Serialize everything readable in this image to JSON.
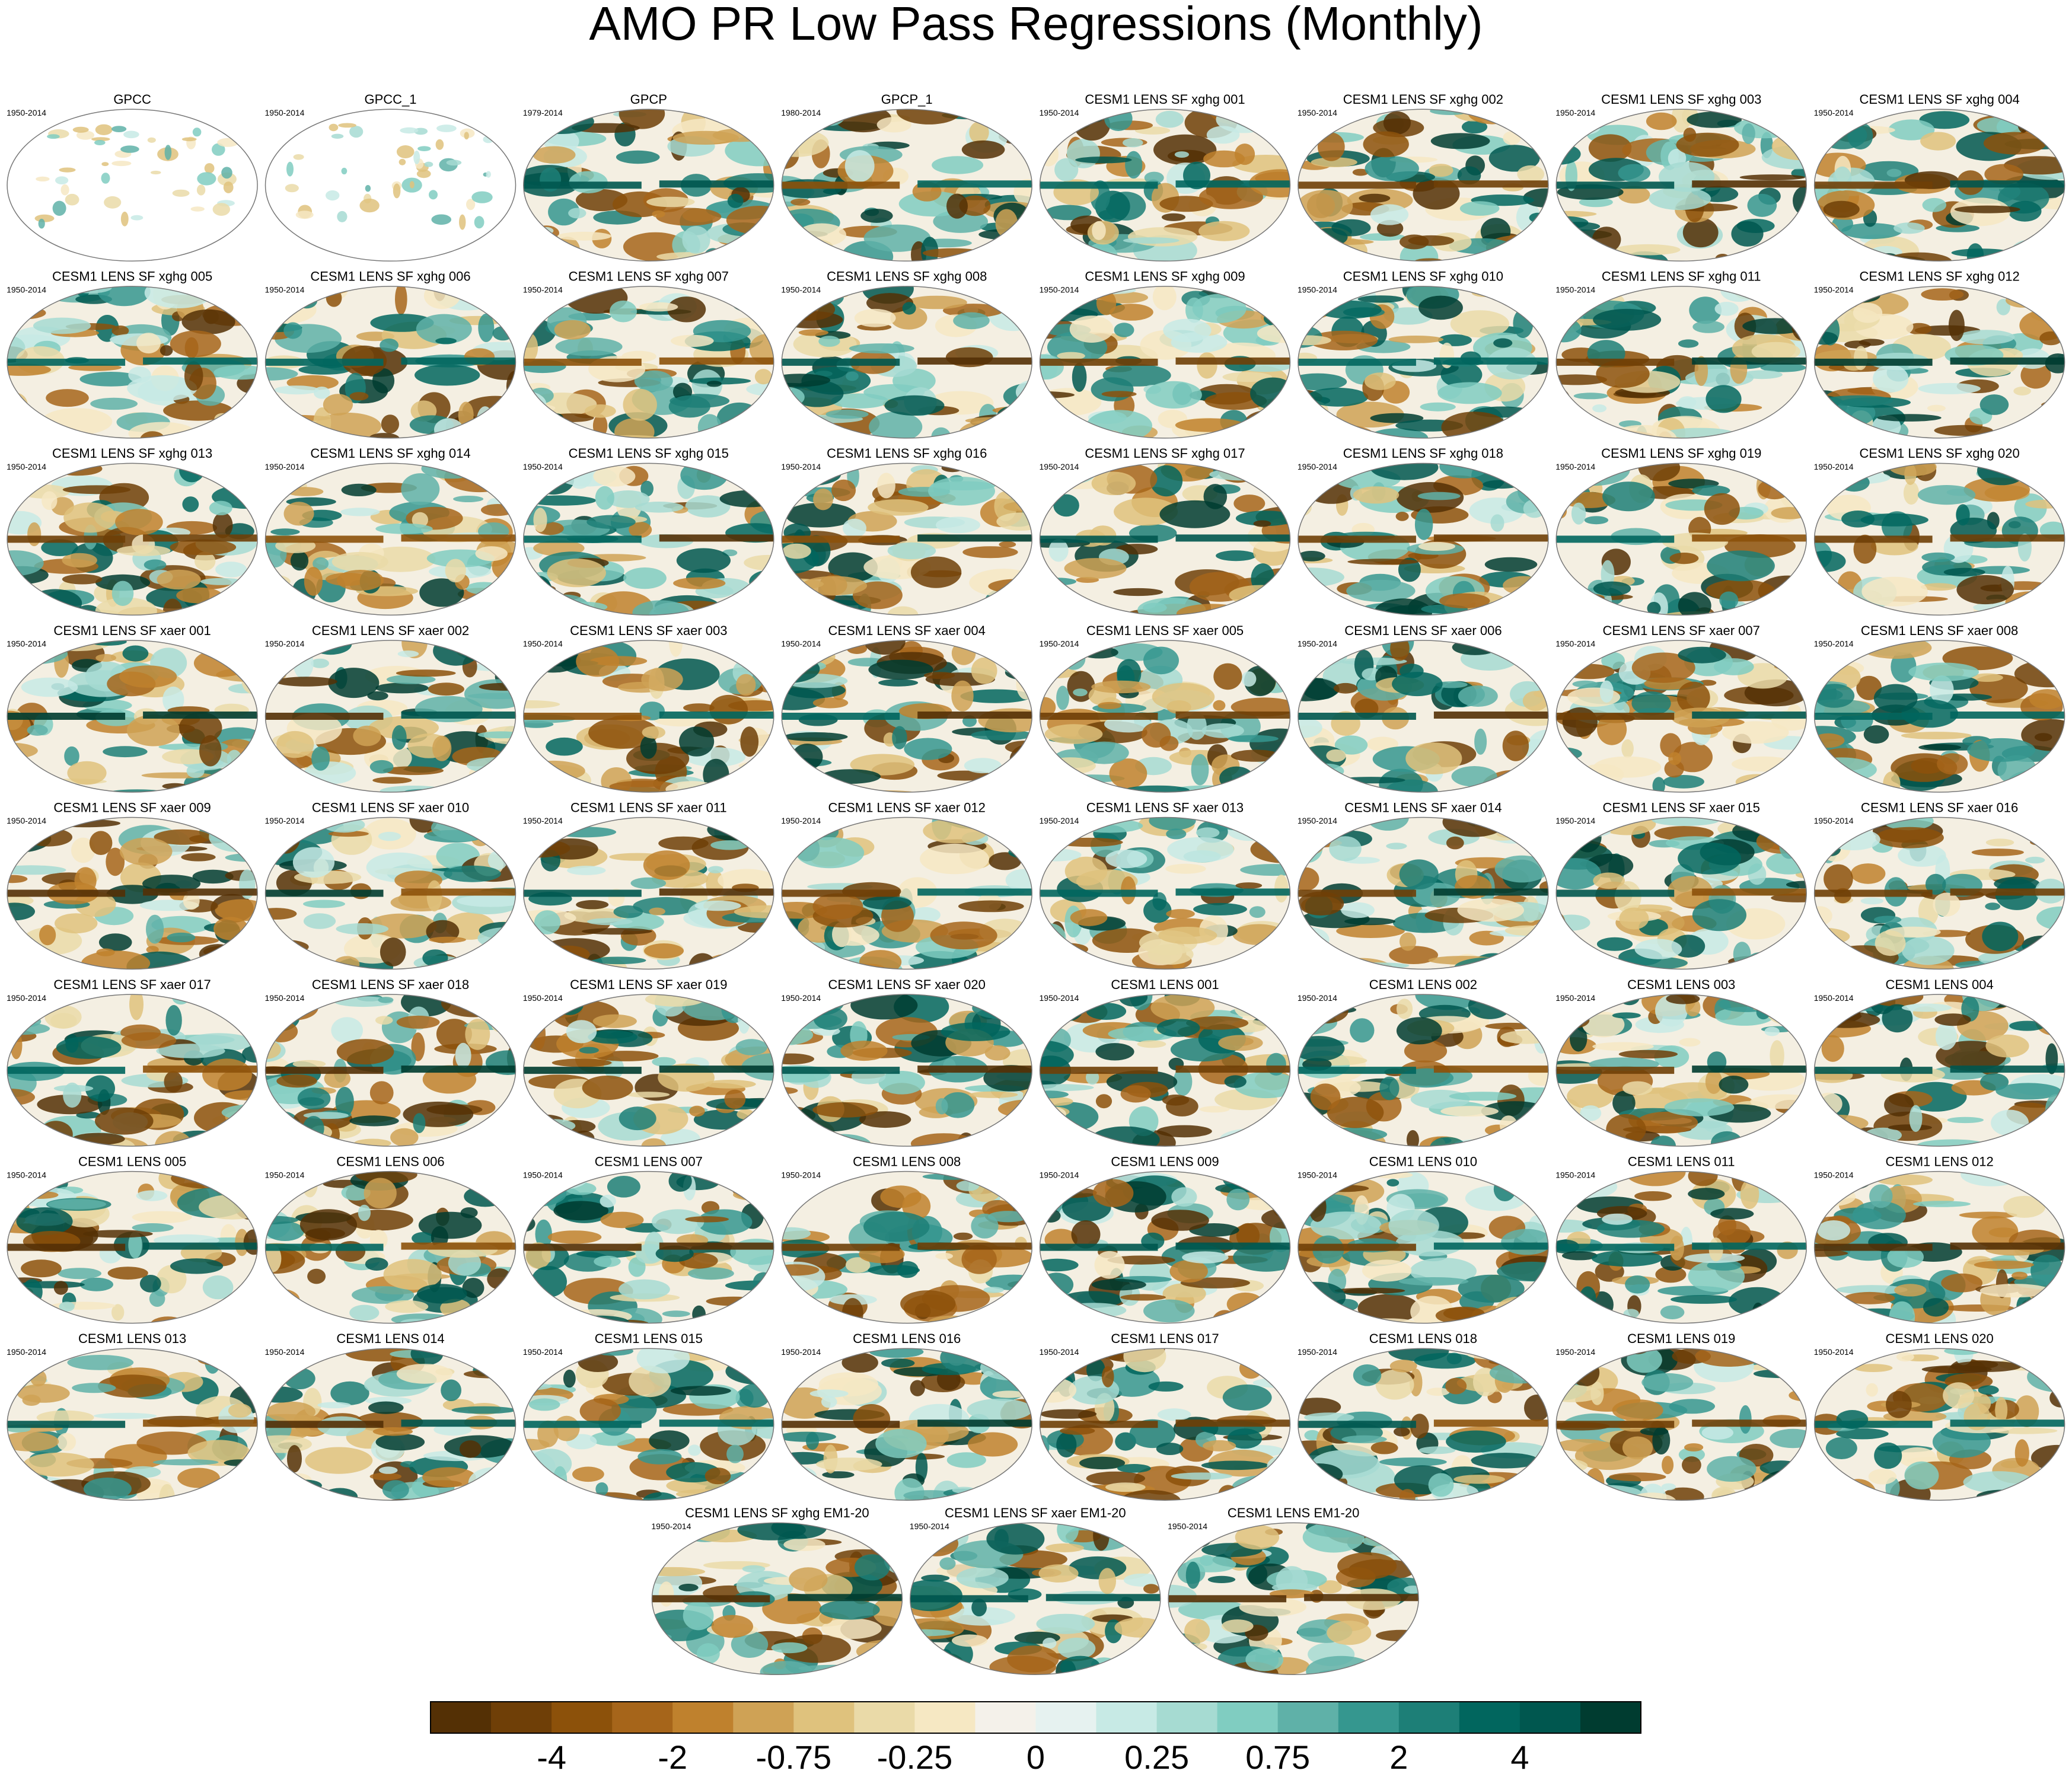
{
  "title": "AMO PR Low Pass Regressions (Monthly)",
  "panels": [
    {
      "title": "GPCC",
      "period": "1950-2014"
    },
    {
      "title": "GPCC_1",
      "period": "1950-2014"
    },
    {
      "title": "GPCP",
      "period": "1979-2014"
    },
    {
      "title": "GPCP_1",
      "period": "1980-2014"
    },
    {
      "title": "CESM1 LENS SF xghg 001",
      "period": "1950-2014"
    },
    {
      "title": "CESM1 LENS SF xghg 002",
      "period": "1950-2014"
    },
    {
      "title": "CESM1 LENS SF xghg 003",
      "period": "1950-2014"
    },
    {
      "title": "CESM1 LENS SF xghg 004",
      "period": "1950-2014"
    },
    {
      "title": "CESM1 LENS SF xghg 005",
      "period": "1950-2014"
    },
    {
      "title": "CESM1 LENS SF xghg 006",
      "period": "1950-2014"
    },
    {
      "title": "CESM1 LENS SF xghg 007",
      "period": "1950-2014"
    },
    {
      "title": "CESM1 LENS SF xghg 008",
      "period": "1950-2014"
    },
    {
      "title": "CESM1 LENS SF xghg 009",
      "period": "1950-2014"
    },
    {
      "title": "CESM1 LENS SF xghg 010",
      "period": "1950-2014"
    },
    {
      "title": "CESM1 LENS SF xghg 011",
      "period": "1950-2014"
    },
    {
      "title": "CESM1 LENS SF xghg 012",
      "period": "1950-2014"
    },
    {
      "title": "CESM1 LENS SF xghg 013",
      "period": "1950-2014"
    },
    {
      "title": "CESM1 LENS SF xghg 014",
      "period": "1950-2014"
    },
    {
      "title": "CESM1 LENS SF xghg 015",
      "period": "1950-2014"
    },
    {
      "title": "CESM1 LENS SF xghg 016",
      "period": "1950-2014"
    },
    {
      "title": "CESM1 LENS SF xghg 017",
      "period": "1950-2014"
    },
    {
      "title": "CESM1 LENS SF xghg 018",
      "period": "1950-2014"
    },
    {
      "title": "CESM1 LENS SF xghg 019",
      "period": "1950-2014"
    },
    {
      "title": "CESM1 LENS SF xghg 020",
      "period": "1950-2014"
    },
    {
      "title": "CESM1 LENS SF xaer 001",
      "period": "1950-2014"
    },
    {
      "title": "CESM1 LENS SF xaer 002",
      "period": "1950-2014"
    },
    {
      "title": "CESM1 LENS SF xaer 003",
      "period": "1950-2014"
    },
    {
      "title": "CESM1 LENS SF xaer 004",
      "period": "1950-2014"
    },
    {
      "title": "CESM1 LENS SF xaer 005",
      "period": "1950-2014"
    },
    {
      "title": "CESM1 LENS SF xaer 006",
      "period": "1950-2014"
    },
    {
      "title": "CESM1 LENS SF xaer 007",
      "period": "1950-2014"
    },
    {
      "title": "CESM1 LENS SF xaer 008",
      "period": "1950-2014"
    },
    {
      "title": "CESM1 LENS SF xaer 009",
      "period": "1950-2014"
    },
    {
      "title": "CESM1 LENS SF xaer 010",
      "period": "1950-2014"
    },
    {
      "title": "CESM1 LENS SF xaer 011",
      "period": "1950-2014"
    },
    {
      "title": "CESM1 LENS SF xaer 012",
      "period": "1950-2014"
    },
    {
      "title": "CESM1 LENS SF xaer 013",
      "period": "1950-2014"
    },
    {
      "title": "CESM1 LENS SF xaer 014",
      "period": "1950-2014"
    },
    {
      "title": "CESM1 LENS SF xaer 015",
      "period": "1950-2014"
    },
    {
      "title": "CESM1 LENS SF xaer 016",
      "period": "1950-2014"
    },
    {
      "title": "CESM1 LENS SF xaer 017",
      "period": "1950-2014"
    },
    {
      "title": "CESM1 LENS SF xaer 018",
      "period": "1950-2014"
    },
    {
      "title": "CESM1 LENS SF xaer 019",
      "period": "1950-2014"
    },
    {
      "title": "CESM1 LENS SF xaer 020",
      "period": "1950-2014"
    },
    {
      "title": "CESM1 LENS 001",
      "period": "1950-2014"
    },
    {
      "title": "CESM1 LENS 002",
      "period": "1950-2014"
    },
    {
      "title": "CESM1 LENS 003",
      "period": "1950-2014"
    },
    {
      "title": "CESM1 LENS 004",
      "period": "1950-2014"
    },
    {
      "title": "CESM1 LENS 005",
      "period": "1950-2014"
    },
    {
      "title": "CESM1 LENS 006",
      "period": "1950-2014"
    },
    {
      "title": "CESM1 LENS 007",
      "period": "1950-2014"
    },
    {
      "title": "CESM1 LENS 008",
      "period": "1950-2014"
    },
    {
      "title": "CESM1 LENS 009",
      "period": "1950-2014"
    },
    {
      "title": "CESM1 LENS 010",
      "period": "1950-2014"
    },
    {
      "title": "CESM1 LENS 011",
      "period": "1950-2014"
    },
    {
      "title": "CESM1 LENS 012",
      "period": "1950-2014"
    },
    {
      "title": "CESM1 LENS 013",
      "period": "1950-2014"
    },
    {
      "title": "CESM1 LENS 014",
      "period": "1950-2014"
    },
    {
      "title": "CESM1 LENS 015",
      "period": "1950-2014"
    },
    {
      "title": "CESM1 LENS 016",
      "period": "1950-2014"
    },
    {
      "title": "CESM1 LENS 017",
      "period": "1950-2014"
    },
    {
      "title": "CESM1 LENS 018",
      "period": "1950-2014"
    },
    {
      "title": "CESM1 LENS 019",
      "period": "1950-2014"
    },
    {
      "title": "CESM1 LENS 020",
      "period": "1950-2014"
    },
    {
      "title": "CESM1 LENS SF xghg EM1-20",
      "period": "1950-2014"
    },
    {
      "title": "CESM1 LENS SF xaer EM1-20",
      "period": "1950-2014"
    },
    {
      "title": "CESM1 LENS EM1-20",
      "period": "1950-2014"
    }
  ],
  "colorbar": {
    "colors": [
      "#543005",
      "#6f3f07",
      "#8c510a",
      "#a6651a",
      "#bf812d",
      "#cfa255",
      "#dfc27d",
      "#eadaa8",
      "#f6e8c3",
      "#f4f1ea",
      "#e6f2f0",
      "#c7eae5",
      "#a6dbd2",
      "#80cdc1",
      "#5fb1a8",
      "#35978f",
      "#1d7f77",
      "#01665e",
      "#00574f",
      "#003c30"
    ],
    "labels": [
      -4,
      -2,
      -0.75,
      -0.25,
      0,
      0.25,
      0.75,
      2,
      4
    ]
  }
}
